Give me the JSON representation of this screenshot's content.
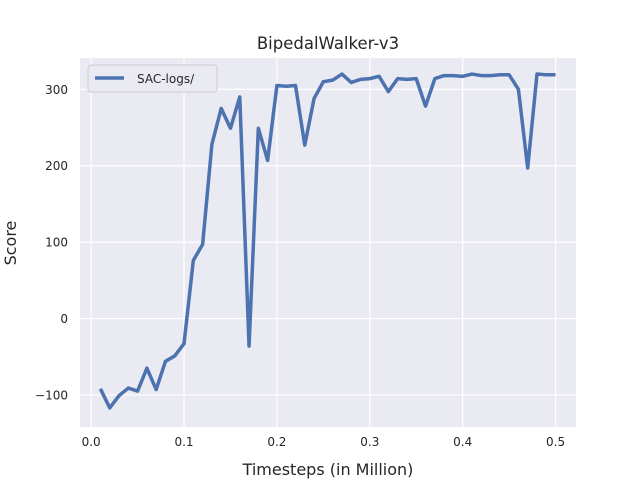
{
  "chart_data": {
    "type": "line",
    "title": "BipedalWalker-v3",
    "xlabel": "Timesteps (in Million)",
    "ylabel": "Score",
    "xlim": [
      -0.012,
      0.522
    ],
    "ylim": [
      -142,
      341
    ],
    "xticks": [
      0,
      0.1,
      0.2,
      0.3,
      0.4,
      0.5
    ],
    "xtick_labels": [
      "0.0",
      "0.1",
      "0.2",
      "0.3",
      "0.4",
      "0.5"
    ],
    "yticks": [
      -100,
      0,
      100,
      200,
      300
    ],
    "ytick_labels": [
      "−100",
      "0",
      "100",
      "200",
      "300"
    ],
    "grid": true,
    "legend_position": "top-left",
    "series": [
      {
        "name": "SAC-logs/",
        "color": "#4c72b0",
        "x": [
          0.01,
          0.02,
          0.03,
          0.04,
          0.05,
          0.06,
          0.07,
          0.08,
          0.09,
          0.1,
          0.11,
          0.12,
          0.13,
          0.14,
          0.15,
          0.16,
          0.17,
          0.18,
          0.19,
          0.2,
          0.21,
          0.22,
          0.23,
          0.24,
          0.25,
          0.26,
          0.27,
          0.28,
          0.29,
          0.3,
          0.31,
          0.32,
          0.33,
          0.34,
          0.35,
          0.36,
          0.37,
          0.38,
          0.39,
          0.4,
          0.41,
          0.42,
          0.43,
          0.44,
          0.45,
          0.46,
          0.47,
          0.48,
          0.49,
          0.5
        ],
        "y": [
          -92,
          -117,
          -101,
          -91,
          -95,
          -65,
          -93,
          -56,
          -49,
          -33,
          76,
          97,
          228,
          275,
          249,
          290,
          -36,
          249,
          207,
          305,
          304,
          305,
          227,
          288,
          310,
          312,
          320,
          309,
          313,
          314,
          317,
          297,
          314,
          313,
          314,
          278,
          314,
          318,
          318,
          317,
          320,
          318,
          318,
          319,
          319,
          300,
          197,
          320,
          319,
          319
        ]
      }
    ]
  }
}
